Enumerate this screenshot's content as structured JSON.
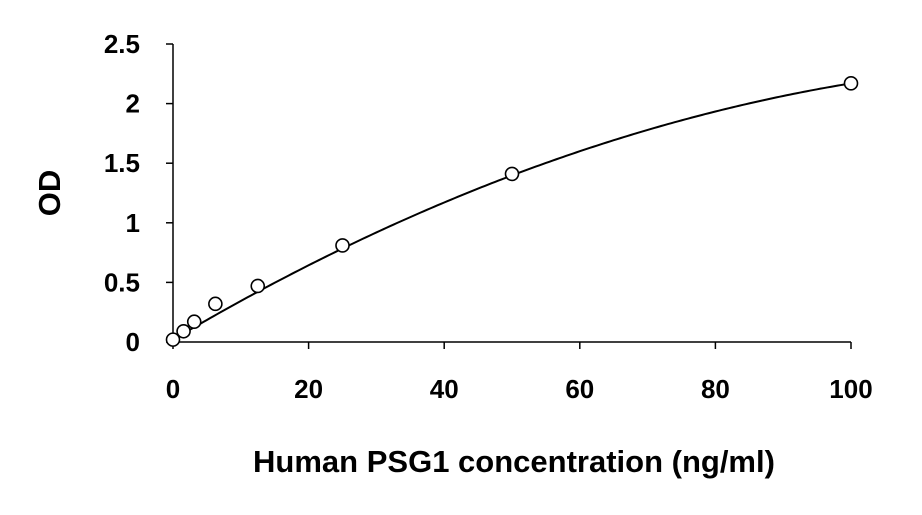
{
  "chart_data": {
    "type": "scatter",
    "title": "",
    "xlabel": "Human PSG1 concentration (ng/ml)",
    "ylabel": "OD",
    "xlim": [
      0,
      100
    ],
    "ylim": [
      0,
      2.5
    ],
    "x_ticks": [
      "0",
      "20",
      "40",
      "60",
      "80",
      "100"
    ],
    "y_ticks": [
      "0",
      "0.5",
      "1",
      "1.5",
      "2",
      "2.5"
    ],
    "grid": false,
    "legend": "none",
    "series": [
      {
        "marker": "open-circle",
        "color": "#000000",
        "points": [
          {
            "x": 0,
            "y": 0.02
          },
          {
            "x": 1.56,
            "y": 0.09
          },
          {
            "x": 3.13,
            "y": 0.17
          },
          {
            "x": 6.25,
            "y": 0.32
          },
          {
            "x": 12.5,
            "y": 0.47
          },
          {
            "x": 25,
            "y": 0.81
          },
          {
            "x": 50,
            "y": 1.41
          },
          {
            "x": 100,
            "y": 2.17
          }
        ]
      }
    ],
    "fit_curve": {
      "type": "polynomial-2",
      "color": "#000000",
      "coefficients": [
        0.02,
        0.0336,
        -0.000121
      ]
    }
  }
}
